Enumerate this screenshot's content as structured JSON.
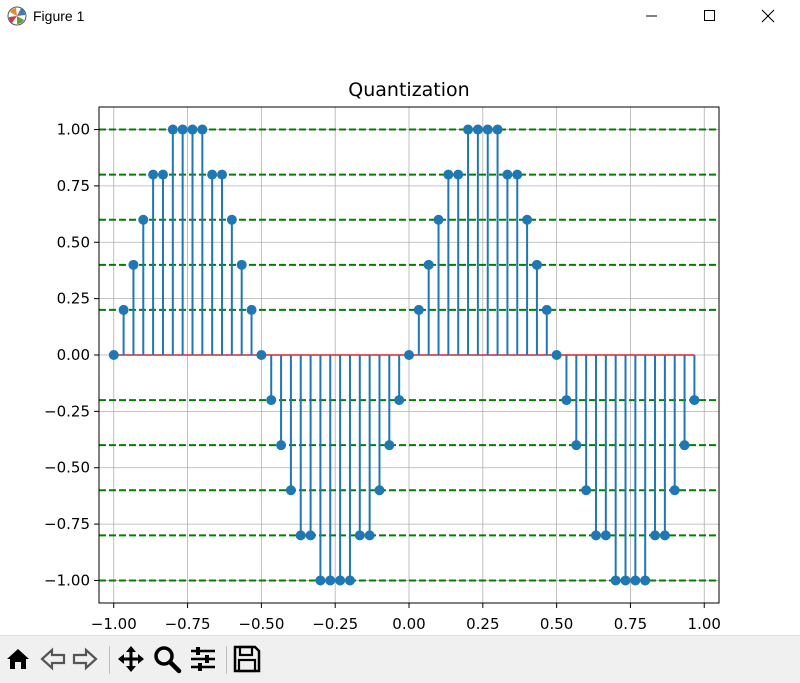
{
  "window": {
    "title": "Figure 1"
  },
  "toolbar": {
    "buttons": [
      "home-icon",
      "back-icon",
      "forward-icon",
      "pan-icon",
      "zoom-icon",
      "configure-icon",
      "save-icon"
    ]
  },
  "chart_data": {
    "type": "stem",
    "title": "Quantization",
    "xlabel": "",
    "ylabel": "",
    "xlim": [
      -1.05,
      1.05
    ],
    "ylim": [
      -1.1,
      1.1
    ],
    "xticks": [
      -1.0,
      -0.75,
      -0.5,
      -0.25,
      0.0,
      0.25,
      0.5,
      0.75,
      1.0
    ],
    "xtick_labels": [
      "−1.00",
      "−0.75",
      "−0.50",
      "−0.25",
      "0.00",
      "0.25",
      "0.50",
      "0.75",
      "1.00"
    ],
    "yticks": [
      1.0,
      0.75,
      0.5,
      0.25,
      0.0,
      -0.25,
      -0.5,
      -0.75,
      -1.0
    ],
    "ytick_labels": [
      "1.00",
      "0.75",
      "0.50",
      "0.25",
      "0.00",
      "−0.25",
      "−0.50",
      "−0.75",
      "−1.00"
    ],
    "grid": true,
    "stem_color": "#1f77b4",
    "baseline_color": "#d62728",
    "level_line_color": "#008000",
    "quantization_levels": [
      1.0,
      0.8,
      0.6,
      0.4,
      0.2,
      -0.2,
      -0.4,
      -0.6,
      -0.8,
      -1.0
    ],
    "x": [
      -1.0,
      -0.9667,
      -0.9333,
      -0.9,
      -0.8667,
      -0.8333,
      -0.8,
      -0.7667,
      -0.7333,
      -0.7,
      -0.6667,
      -0.6333,
      -0.6,
      -0.5667,
      -0.5333,
      -0.5,
      -0.4667,
      -0.4333,
      -0.4,
      -0.3667,
      -0.3333,
      -0.3,
      -0.2667,
      -0.2333,
      -0.2,
      -0.1667,
      -0.1333,
      -0.1,
      -0.0667,
      -0.0333,
      0.0,
      0.0333,
      0.0667,
      0.1,
      0.1333,
      0.1667,
      0.2,
      0.2333,
      0.2667,
      0.3,
      0.3333,
      0.3667,
      0.4,
      0.4333,
      0.4667,
      0.5,
      0.5333,
      0.5667,
      0.6,
      0.6333,
      0.6667,
      0.7,
      0.7333,
      0.7667,
      0.8,
      0.8333,
      0.8667,
      0.9,
      0.9333,
      0.9667
    ],
    "values": [
      0.0,
      0.2,
      0.4,
      0.6,
      0.8,
      0.8,
      1.0,
      1.0,
      1.0,
      1.0,
      0.8,
      0.8,
      0.6,
      0.4,
      0.2,
      0.0,
      -0.2,
      -0.4,
      -0.6,
      -0.8,
      -0.8,
      -1.0,
      -1.0,
      -1.0,
      -1.0,
      -0.8,
      -0.8,
      -0.6,
      -0.4,
      -0.2,
      0.0,
      0.2,
      0.4,
      0.6,
      0.8,
      0.8,
      1.0,
      1.0,
      1.0,
      1.0,
      0.8,
      0.8,
      0.6,
      0.4,
      0.2,
      0.0,
      -0.2,
      -0.4,
      -0.6,
      -0.8,
      -0.8,
      -1.0,
      -1.0,
      -1.0,
      -1.0,
      -0.8,
      -0.8,
      -0.6,
      -0.4,
      -0.2
    ]
  }
}
